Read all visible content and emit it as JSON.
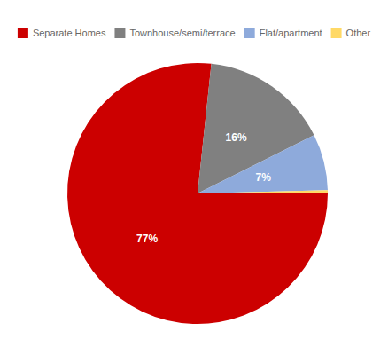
{
  "chart_data": {
    "type": "pie",
    "categories": [
      "Separate Homes",
      "Townhouse/semi/terrace",
      "Flat/apartment",
      "Other"
    ],
    "values": [
      77,
      16,
      7,
      0.4
    ],
    "value_labels": [
      "77%",
      "16%",
      "7%",
      null
    ],
    "colors": [
      "#cc0000",
      "#808080",
      "#8eaadb",
      "#ffd966"
    ],
    "legend": "top",
    "data_labels": true
  }
}
